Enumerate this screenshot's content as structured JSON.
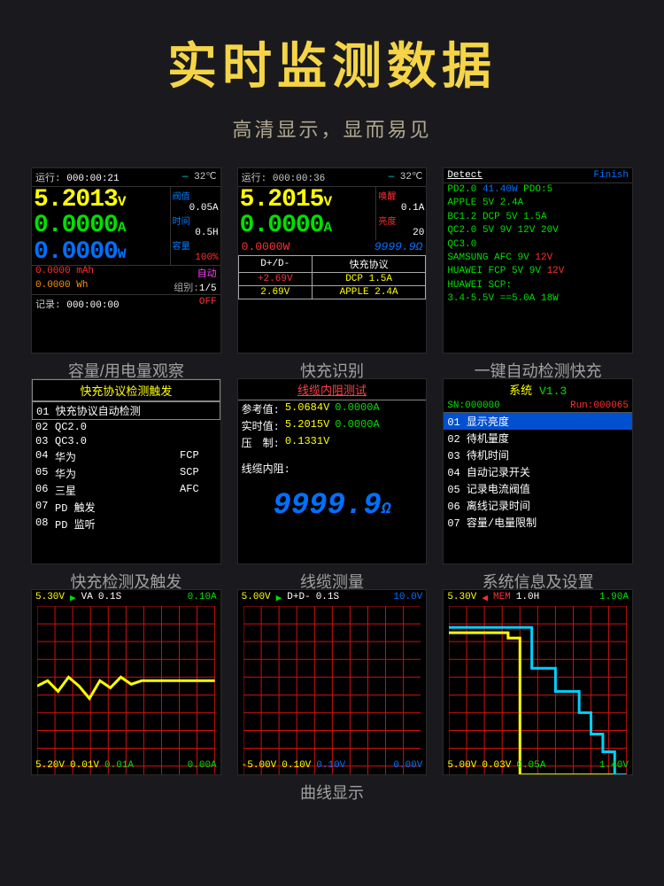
{
  "colors": {
    "yellow": "#ffff00",
    "green": "#00e000",
    "red": "#ff3030",
    "blue": "#0070ff",
    "cyan": "#00e0e0",
    "orange": "#ff9000",
    "white": "#ffffff",
    "gray": "#aaaaaa",
    "magenta": "#ff40ff",
    "grid": "#d01010",
    "title_yellow": "#f5d547"
  },
  "title": "实时监测数据",
  "subtitle": "高清显示，显而易见",
  "captions": {
    "p1": "容量/用电量观察",
    "p2": "快充识别",
    "p3": "一键自动检测快充",
    "p4": "快充检测及触发",
    "p5": "线缆测量",
    "p6": "系统信息及设置",
    "graphs": "曲线显示"
  },
  "p1": {
    "run_label": "运行:",
    "run_time": "000:00:21",
    "temp": "32℃",
    "voltage": "5.2013",
    "voltage_unit": "V",
    "current": "0.0000",
    "current_unit": "A",
    "power": "0.0000",
    "power_unit": "W",
    "thresh_lbl": "阀值",
    "thresh_val": "0.05A",
    "time_lbl": "时间",
    "time_val": "0.5H",
    "cap_lbl": "容量",
    "cap_val": "100%",
    "mah_val": "0.0000",
    "mah_unit": "mAh",
    "wh_val": "0.0000",
    "wh_unit": "Wh",
    "auto": "自动",
    "group_lbl": "组别:",
    "group_val": "1/5",
    "rec_lbl": "记录:",
    "rec_time": "000:00:00",
    "rec_state": "OFF"
  },
  "p2": {
    "run_label": "运行:",
    "run_time": "000:00:36",
    "temp": "32℃",
    "voltage": "5.2015",
    "voltage_unit": "V",
    "current": "0.0000",
    "current_unit": "A",
    "wake_lbl": "唤醒",
    "wake_val": "0.1A",
    "bright_lbl": "亮度",
    "bright_val": "20",
    "power": "0.0000W",
    "ohm": "9999.9Ω",
    "th_dpdm": "D+/D-",
    "th_proto": "快充协议",
    "r1_v": "+2.69V",
    "r1_p": "DCP 1.5A",
    "r2_v": "2.69V",
    "r2_p": "APPLE 2.4A"
  },
  "p3": {
    "detect": "Detect",
    "finish": "Finish",
    "lines": [
      {
        "a": "PD2.0",
        "a_c": "#00e000",
        "b": "41.40W",
        "b_c": "#0070ff",
        "c": "PDO:5",
        "c_c": "#00e000"
      },
      {
        "a": "APPLE",
        "a_c": "#00e000",
        "b": "5V 2.4A",
        "b_c": "#00e000"
      },
      {
        "a": "BC1.2",
        "a_c": "#00e000",
        "b": "DCP 5V 1.5A",
        "b_c": "#00e000"
      },
      {
        "a": "QC2.0",
        "a_c": "#00e000",
        "b": "5V 9V 12V 20V",
        "b_c": "#00e000"
      },
      {
        "a": "QC3.0",
        "a_c": "#00e000"
      },
      {
        "a": "SAMSUNG AFC",
        "a_c": "#00e000",
        "b": "9V",
        "b_c": "#00e000",
        "c": "12V",
        "c_c": "#ff3030"
      },
      {
        "a": "HUAWEI FCP",
        "a_c": "#00e000",
        "b": "5V 9V",
        "b_c": "#00e000",
        "c": "12V",
        "c_c": "#ff3030"
      },
      {
        "a": "HUAWEI SCP:",
        "a_c": "#00e000"
      },
      {
        "a": "3.4-5.5V",
        "a_c": "#00e000",
        "b": "==5.0A",
        "b_c": "#00e000",
        "c": "18W",
        "c_c": "#00e000"
      }
    ]
  },
  "p4": {
    "header": "快充协议检测触发",
    "selected": "01 快充协议自动检测",
    "items": [
      {
        "n": "02",
        "t": "QC2.0",
        "p": ""
      },
      {
        "n": "03",
        "t": "QC3.0",
        "p": ""
      },
      {
        "n": "04",
        "t": "华为",
        "p": "FCP"
      },
      {
        "n": "05",
        "t": "华为",
        "p": "SCP"
      },
      {
        "n": "06",
        "t": "三星",
        "p": "AFC"
      },
      {
        "n": "07",
        "t": "PD 触发",
        "p": ""
      },
      {
        "n": "08",
        "t": "PD 监听",
        "p": ""
      }
    ]
  },
  "p5": {
    "header": "线缆内阻测试",
    "ref_lbl": "参考值:",
    "ref_v": "5.0684V",
    "ref_a": "0.0000A",
    "rt_lbl": "实时值:",
    "rt_v": "5.2015V",
    "rt_a": "0.0000A",
    "press_lbl": "压　制:",
    "press_v": "0.1331V",
    "res_lbl": "线缆内阻:",
    "res_val": "9999.9",
    "res_unit": "Ω"
  },
  "p6": {
    "sys": "系统",
    "ver": "V1.3",
    "sn_lbl": "SN:",
    "sn_val": "000000",
    "run_lbl": "Run:",
    "run_val": "000065",
    "selected": "01 显示亮度",
    "items": [
      "02 待机量度",
      "03 待机时间",
      "04 自动记录开关",
      "05 记录电流阀值",
      "06 离线记录时间",
      "07 容量/电量限制"
    ]
  },
  "g1": {
    "top": [
      {
        "t": "5.30V",
        "c": "#ffff00"
      },
      {
        "t": "▶",
        "c": "#00e000"
      },
      {
        "t": "VA",
        "c": "#fff"
      },
      {
        "t": "0.1S",
        "c": "#fff"
      },
      {
        "t": "0.10A",
        "c": "#00e000"
      }
    ],
    "bot": [
      {
        "t": "5.20V",
        "c": "#ffff00"
      },
      {
        "t": "0.01V",
        "c": "#ffff00"
      },
      {
        "t": "0.01A",
        "c": "#00e000"
      },
      {
        "t": "0.00A",
        "c": "#00e000"
      }
    ],
    "trace_y": [
      0.45,
      0.42,
      0.48,
      0.4,
      0.45,
      0.52,
      0.42,
      0.46,
      0.4,
      0.44,
      0.42,
      0.42,
      0.42,
      0.42,
      0.42,
      0.42,
      0.42,
      0.42
    ],
    "trace_color": "#ffff00"
  },
  "g2": {
    "top": [
      {
        "t": "5.00V",
        "c": "#ffff00"
      },
      {
        "t": "▶",
        "c": "#00e000"
      },
      {
        "t": "D+D-",
        "c": "#fff"
      },
      {
        "t": "0.1S",
        "c": "#fff"
      },
      {
        "t": "10.0V",
        "c": "#0070ff"
      }
    ],
    "bot": [
      {
        "t": "-5.00V",
        "c": "#ffff00"
      },
      {
        "t": "0.10V",
        "c": "#ffff00"
      },
      {
        "t": "0.10V",
        "c": "#0070ff"
      },
      {
        "t": "0.00V",
        "c": "#0070ff"
      }
    ]
  },
  "g3": {
    "top": [
      {
        "t": "5.30V",
        "c": "#ffff00"
      },
      {
        "t": "◀",
        "c": "#ff3030"
      },
      {
        "t": "MEM",
        "c": "#ff3030"
      },
      {
        "t": "1.0H",
        "c": "#fff"
      },
      {
        "t": "1.90A",
        "c": "#00e000"
      }
    ],
    "bot": [
      {
        "t": "5.00V",
        "c": "#ffff00"
      },
      {
        "t": "0.03V",
        "c": "#ffff00"
      },
      {
        "t": "0.05A",
        "c": "#00e000"
      },
      {
        "t": "1.40V",
        "c": "#00e000"
      }
    ],
    "trace1_y": [
      0.15,
      0.15,
      0.15,
      0.15,
      0.15,
      0.18,
      0.95,
      0.95,
      0.95,
      0.95,
      0.95,
      0.95,
      0.95,
      0.95,
      0.95,
      0.95
    ],
    "trace1_color": "#ffff00",
    "trace2_y": [
      0.12,
      0.12,
      0.12,
      0.12,
      0.12,
      0.12,
      0.12,
      0.35,
      0.35,
      0.48,
      0.48,
      0.6,
      0.72,
      0.82,
      0.95,
      0.95
    ],
    "trace2_color": "#00d0ff"
  }
}
